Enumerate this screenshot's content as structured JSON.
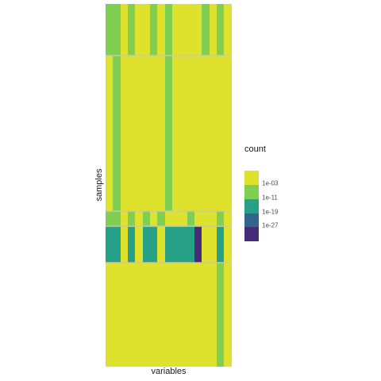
{
  "chart_data": {
    "type": "heatmap",
    "xlabel": "variables",
    "ylabel": "samples",
    "legend": {
      "title": "count",
      "placement": "right",
      "labels": [
        "1e-03",
        "1e-11",
        "1e-19",
        "1e-27"
      ]
    },
    "colors": {
      "y": "#dfe22d",
      "g": "#7ecf52",
      "t": "#26a188",
      "p": "#462b7b"
    },
    "blocks": [
      {
        "rows": 16,
        "pattern": "ggyyyyyyyyyyyyyyyyyyyyyyyyyyyyy",
        "cells": "gggggyggyyyyyyygggyyyyyyyyyyggyyyyyyyyyyyyyyyyyyyyyyyyyyyyy"
      },
      {
        "rows": 47,
        "cells": "yyygggyyyyyyyyyyyyyyyyyyygggyyyyyyyyyyyyyyyyyyyyyyyyyyyyy"
      },
      {
        "rows": 4,
        "cells": "ggggyyyggyyyggyyyyggyyyyyyyyyyyyyyyyyyyyyyyyyyyyyyyyyyyyy"
      }
    ],
    "rows": [
      {
        "span": 16,
        "cols": [
          "g",
          "g",
          "y",
          "g",
          "y",
          "y",
          "y",
          "g",
          "y",
          "y",
          "y",
          "y",
          "y",
          "g",
          "y",
          "y",
          "y",
          "y",
          "y",
          "y",
          "y",
          "y",
          "y",
          "y",
          "y",
          "g",
          "g",
          "y",
          "y",
          "y",
          "y",
          "y",
          "y"
        ]
      },
      {
        "span": 48,
        "cols": [
          "y",
          "g",
          "y",
          "y",
          "y",
          "y",
          "y",
          "y",
          "y",
          "y",
          "y",
          "y",
          "y",
          "y",
          "y",
          "y",
          "y",
          "y",
          "y",
          "y",
          "y",
          "y",
          "y",
          "y",
          "y",
          "g",
          "g",
          "y",
          "y",
          "y",
          "y",
          "y",
          "y"
        ]
      },
      {
        "span": 5,
        "cols": [
          "g",
          "g",
          "y",
          "g",
          "y",
          "g",
          "y",
          "y",
          "y",
          "y",
          "y",
          "y",
          "y",
          "g",
          "y",
          "y",
          "y",
          "y",
          "y",
          "y",
          "g",
          "y",
          "y",
          "y",
          "y",
          "y",
          "y",
          "y",
          "y",
          "y",
          "y",
          "y",
          "y"
        ]
      },
      {
        "span": 11,
        "cols": [
          "t",
          "t",
          "y",
          "t",
          "y",
          "t",
          "t",
          "y",
          "t",
          "t",
          "t",
          "t",
          "t",
          "p",
          "y",
          "t",
          "t",
          "t",
          "t",
          "t",
          "t",
          "t",
          "t",
          "t",
          "t",
          "t",
          "t",
          "t",
          "t",
          "t",
          "t",
          "t",
          "t"
        ]
      },
      {
        "span": 34,
        "cols": [
          "y",
          "y",
          "y",
          "y",
          "y",
          "y",
          "y",
          "y",
          "y",
          "y",
          "y",
          "y",
          "y",
          "y",
          "y",
          "y",
          "y",
          "y",
          "y",
          "y",
          "y",
          "y",
          "y",
          "y",
          "y",
          "y",
          "y",
          "y",
          "y",
          "y",
          "y",
          "y",
          "y"
        ]
      }
    ]
  }
}
